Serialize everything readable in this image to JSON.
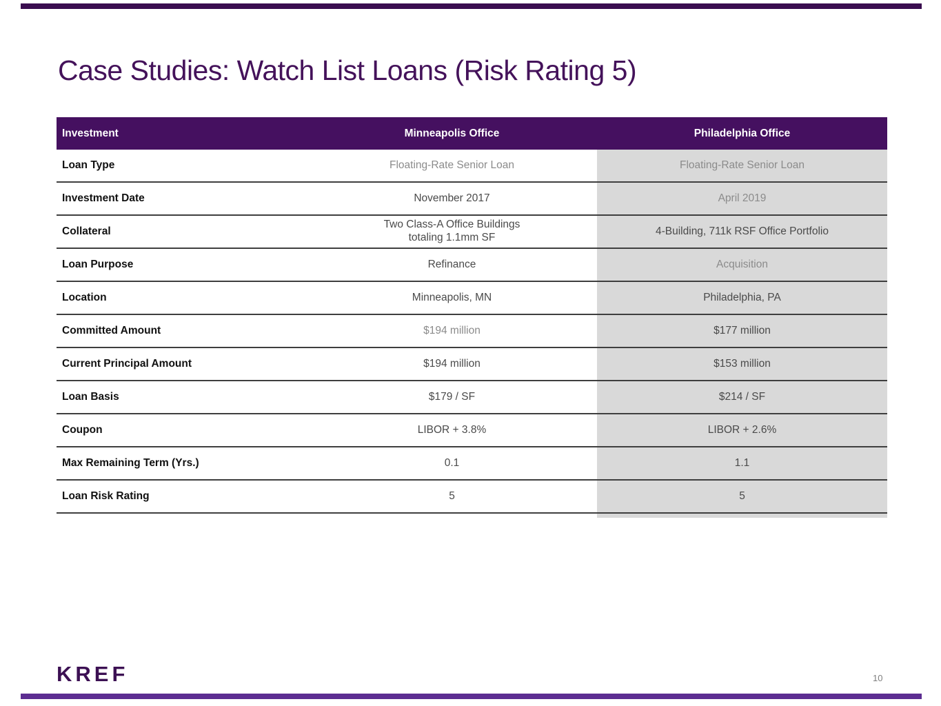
{
  "slide": {
    "title": "Case Studies: Watch List Loans (Risk Rating 5)",
    "logo_text": "KREF",
    "page_number": "10"
  },
  "colors": {
    "brand_purple": "#3c1053",
    "table_header_purple": "#451060",
    "highlight_column_gray": "#d9d9d9",
    "row_border_dark": "#3e3e3e",
    "top_strip": "#3a0d4f",
    "bottom_strip": "#5c2d91"
  },
  "table": {
    "headers": [
      "Investment",
      "Minneapolis Office",
      "Philadelphia Office"
    ],
    "rows": [
      {
        "label": "Loan Type",
        "minneapolis": "Floating-Rate Senior Loan",
        "philadelphia": "Floating-Rate Senior Loan"
      },
      {
        "label": "Investment Date",
        "minneapolis": "November 2017",
        "philadelphia": "April 2019"
      },
      {
        "label": "Collateral",
        "minneapolis": "Two Class-A Office Buildings\ntotaling 1.1mm SF",
        "philadelphia": "4-Building, 711k RSF Office Portfolio"
      },
      {
        "label": "Loan Purpose",
        "minneapolis": "Refinance",
        "philadelphia": "Acquisition"
      },
      {
        "label": "Location",
        "minneapolis": "Minneapolis, MN",
        "philadelphia": "Philadelphia, PA"
      },
      {
        "label": "Committed Amount",
        "minneapolis": "$194 million",
        "philadelphia": "$177 million"
      },
      {
        "label": "Current Principal Amount",
        "minneapolis": "$194 million",
        "philadelphia": "$153 million"
      },
      {
        "label": "Loan Basis",
        "minneapolis": "$179 / SF",
        "philadelphia": "$214 / SF"
      },
      {
        "label": "Coupon",
        "minneapolis": "LIBOR + 3.8%",
        "philadelphia": "LIBOR + 2.6%"
      },
      {
        "label": "Max Remaining Term (Yrs.)",
        "minneapolis": "0.1",
        "philadelphia": "1.1"
      },
      {
        "label": "Loan Risk Rating",
        "minneapolis": "5",
        "philadelphia": "5"
      }
    ]
  }
}
